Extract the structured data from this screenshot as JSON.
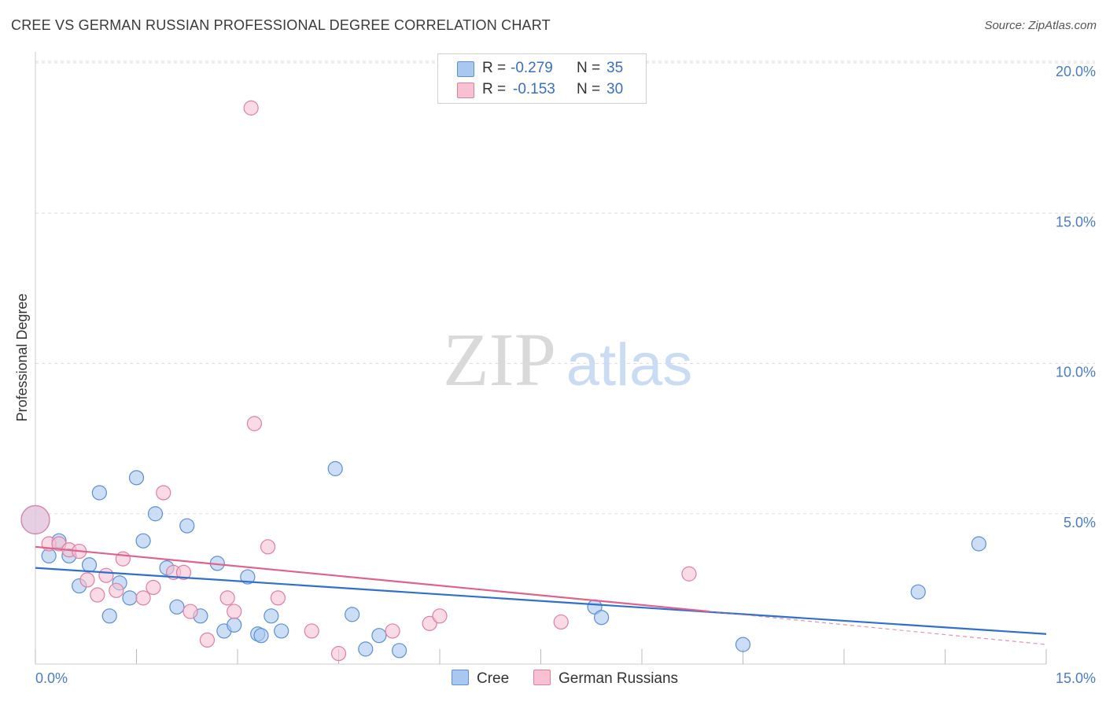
{
  "header": {
    "title": "CREE VS GERMAN RUSSIAN PROFESSIONAL DEGREE CORRELATION CHART",
    "source": "Source: ZipAtlas.com"
  },
  "watermark": {
    "zip": "ZIP",
    "atlas": "atlas"
  },
  "legend": {
    "rows": [
      {
        "r_label": "R =",
        "r_value": "-0.279",
        "n_label": "N =",
        "n_value": "35",
        "color": "#a9c8f0",
        "stroke": "#5b8fd6"
      },
      {
        "r_label": "R =",
        "r_value": "-0.153",
        "n_label": "N =",
        "n_value": "30",
        "color": "#f7c1d2",
        "stroke": "#e07fa0"
      }
    ]
  },
  "bottom_legend": [
    {
      "label": "Cree",
      "color": "#a9c8f0"
    },
    {
      "label": "German Russians",
      "color": "#f7c1d2"
    }
  ],
  "chart_data": {
    "type": "scatter",
    "title": "CREE VS GERMAN RUSSIAN PROFESSIONAL DEGREE CORRELATION CHART",
    "xlabel": "",
    "ylabel": "Professional Degree",
    "xlim": [
      0,
      15
    ],
    "ylim": [
      0,
      20
    ],
    "x_tick_labels": [
      "0.0%",
      "15.0%"
    ],
    "y_ticks": [
      5,
      10,
      15,
      20
    ],
    "y_tick_labels": [
      "5.0%",
      "10.0%",
      "15.0%",
      "20.0%"
    ],
    "grid": true,
    "series": [
      {
        "name": "Cree",
        "color": "#a9c8f0",
        "stroke": "#5b8fd6",
        "line_color": "#2e6fd0",
        "trend": {
          "x": [
            0,
            15
          ],
          "y": [
            3.2,
            1.0
          ]
        },
        "points": [
          {
            "x": 0.0,
            "y": 4.8,
            "big": true
          },
          {
            "x": 0.2,
            "y": 3.6
          },
          {
            "x": 0.35,
            "y": 4.1
          },
          {
            "x": 0.5,
            "y": 3.6
          },
          {
            "x": 0.65,
            "y": 2.6
          },
          {
            "x": 0.8,
            "y": 3.3
          },
          {
            "x": 0.95,
            "y": 5.7
          },
          {
            "x": 1.1,
            "y": 1.6
          },
          {
            "x": 1.25,
            "y": 2.7
          },
          {
            "x": 1.4,
            "y": 2.2
          },
          {
            "x": 1.5,
            "y": 6.2
          },
          {
            "x": 1.6,
            "y": 4.1
          },
          {
            "x": 1.78,
            "y": 5.0
          },
          {
            "x": 1.95,
            "y": 3.2
          },
          {
            "x": 2.1,
            "y": 1.9
          },
          {
            "x": 2.25,
            "y": 4.6
          },
          {
            "x": 2.45,
            "y": 1.6
          },
          {
            "x": 2.7,
            "y": 3.35
          },
          {
            "x": 2.8,
            "y": 1.1
          },
          {
            "x": 2.95,
            "y": 1.3
          },
          {
            "x": 3.15,
            "y": 2.9
          },
          {
            "x": 3.3,
            "y": 1.0
          },
          {
            "x": 3.35,
            "y": 0.95
          },
          {
            "x": 3.5,
            "y": 1.6
          },
          {
            "x": 3.65,
            "y": 1.1
          },
          {
            "x": 4.45,
            "y": 6.5
          },
          {
            "x": 4.7,
            "y": 1.65
          },
          {
            "x": 4.9,
            "y": 0.5
          },
          {
            "x": 5.1,
            "y": 0.95
          },
          {
            "x": 5.4,
            "y": 0.45
          },
          {
            "x": 8.3,
            "y": 1.9
          },
          {
            "x": 8.4,
            "y": 1.55
          },
          {
            "x": 10.5,
            "y": 0.65
          },
          {
            "x": 13.1,
            "y": 2.4
          },
          {
            "x": 14.0,
            "y": 4.0
          }
        ]
      },
      {
        "name": "German Russians",
        "color": "#f7c1d2",
        "stroke": "#e07fa0",
        "line_color": "#e0628c",
        "trend": {
          "x": [
            0,
            10.0
          ],
          "y": [
            3.9,
            1.75
          ]
        },
        "trend_dashed": {
          "x": [
            10.0,
            15
          ],
          "y": [
            1.75,
            0.65
          ]
        },
        "points": [
          {
            "x": 0.0,
            "y": 4.8,
            "big": true
          },
          {
            "x": 0.2,
            "y": 4.0
          },
          {
            "x": 0.35,
            "y": 4.0
          },
          {
            "x": 0.5,
            "y": 3.8
          },
          {
            "x": 0.65,
            "y": 3.75
          },
          {
            "x": 0.77,
            "y": 2.8
          },
          {
            "x": 0.92,
            "y": 2.3
          },
          {
            "x": 1.05,
            "y": 2.95
          },
          {
            "x": 1.2,
            "y": 2.45
          },
          {
            "x": 1.3,
            "y": 3.5
          },
          {
            "x": 1.6,
            "y": 2.2
          },
          {
            "x": 1.75,
            "y": 2.55
          },
          {
            "x": 1.9,
            "y": 5.7
          },
          {
            "x": 2.05,
            "y": 3.05
          },
          {
            "x": 2.2,
            "y": 3.05
          },
          {
            "x": 2.3,
            "y": 1.75
          },
          {
            "x": 2.55,
            "y": 0.8
          },
          {
            "x": 2.85,
            "y": 2.2
          },
          {
            "x": 2.95,
            "y": 1.75
          },
          {
            "x": 3.2,
            "y": 18.5
          },
          {
            "x": 3.25,
            "y": 8.0
          },
          {
            "x": 3.45,
            "y": 3.9
          },
          {
            "x": 3.6,
            "y": 2.2
          },
          {
            "x": 4.1,
            "y": 1.1
          },
          {
            "x": 4.5,
            "y": 0.35
          },
          {
            "x": 5.3,
            "y": 1.1
          },
          {
            "x": 5.85,
            "y": 1.35
          },
          {
            "x": 6.0,
            "y": 1.6
          },
          {
            "x": 7.8,
            "y": 1.4
          },
          {
            "x": 9.7,
            "y": 3.0
          }
        ]
      }
    ]
  }
}
